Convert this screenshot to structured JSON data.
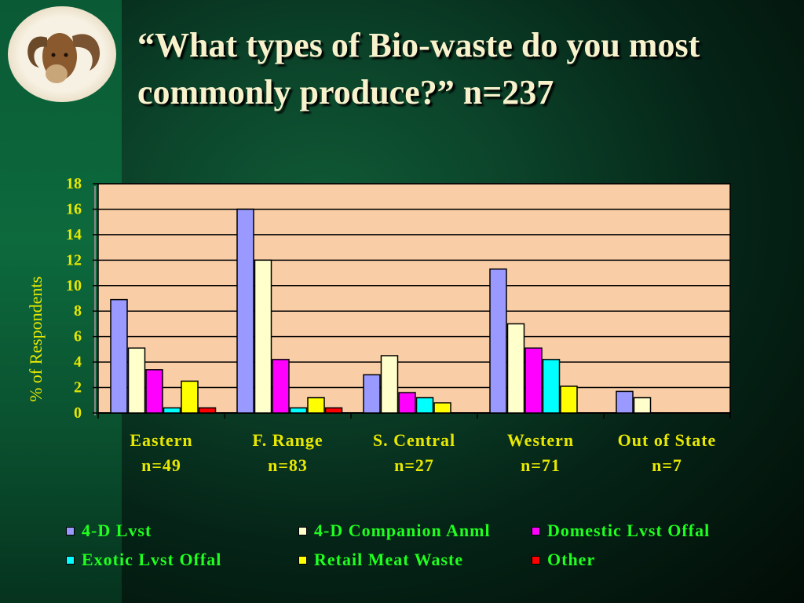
{
  "title": "“What types of Bio-waste do you most commonly produce?” n=237",
  "chart_data": {
    "type": "bar",
    "ylabel": "% of Respondents",
    "xlabel": "",
    "ylim": [
      0,
      18
    ],
    "yticks": [
      "0",
      "2",
      "4",
      "6",
      "8",
      "10",
      "12",
      "14",
      "16",
      "18"
    ],
    "grid": true,
    "legend_position": "bottom",
    "plot_background": "#f9cda6",
    "categories": [
      "Eastern",
      "F. Range",
      "S. Central",
      "Western",
      "Out of State"
    ],
    "category_counts": [
      "n=49",
      "n=83",
      "n=27",
      "n=71",
      "n=7"
    ],
    "series": [
      {
        "name": "4-D Lvst",
        "color": "#9999ff",
        "values": [
          8.9,
          16.0,
          3.0,
          11.3,
          1.7
        ]
      },
      {
        "name": "4-D Companion Anml",
        "color": "#ffffcc",
        "values": [
          5.1,
          12.0,
          4.5,
          7.0,
          1.2
        ]
      },
      {
        "name": "Domestic Lvst Offal",
        "color": "#ff00ff",
        "values": [
          3.4,
          4.2,
          1.6,
          5.1,
          0
        ]
      },
      {
        "name": "Exotic Lvst Offal",
        "color": "#00ffff",
        "values": [
          0.4,
          0.4,
          1.2,
          4.2,
          0
        ]
      },
      {
        "name": "Retail Meat Waste",
        "color": "#ffff00",
        "values": [
          2.5,
          1.2,
          0.8,
          2.1,
          0
        ]
      },
      {
        "name": "Other",
        "color": "#ff0000",
        "values": [
          0.4,
          0.4,
          0,
          0,
          0
        ]
      }
    ]
  }
}
